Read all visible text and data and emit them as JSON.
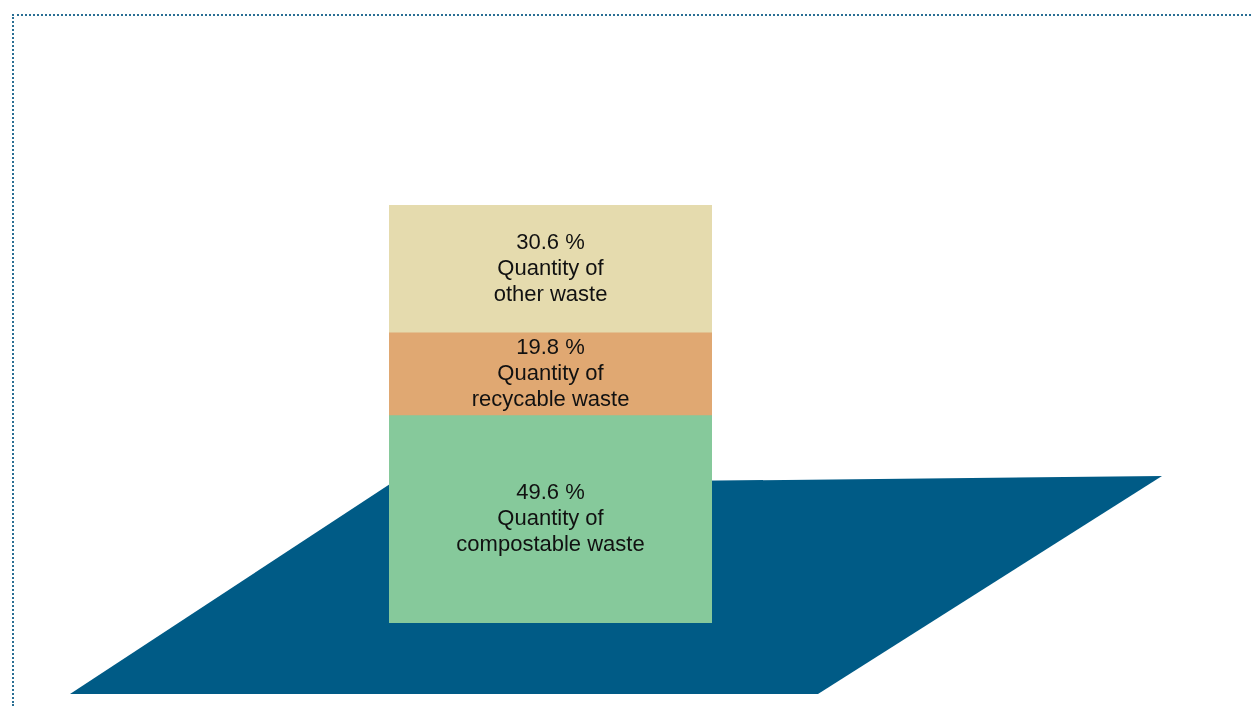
{
  "chart_data": {
    "type": "bar",
    "stacked": true,
    "tick_labels": false,
    "categories": [
      null
    ],
    "series": [
      {
        "name": "Quantity of compostable waste",
        "color": "#86c99b",
        "values": [
          49.6
        ],
        "value_labels": [
          "49.6 %"
        ]
      },
      {
        "name": "Quantity of recycable waste",
        "color": "#e0a872",
        "values": [
          19.8
        ],
        "value_labels": [
          "19.8 %"
        ]
      },
      {
        "name": "Quantity of other waste",
        "color": "#e5dbae",
        "values": [
          30.6
        ],
        "value_labels": [
          "30.6 %"
        ]
      }
    ]
  }
}
